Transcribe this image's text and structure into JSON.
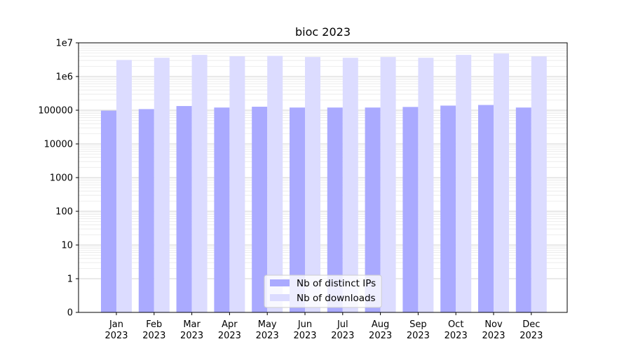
{
  "chart_data": {
    "type": "bar",
    "title": "bioc 2023",
    "xlabel": "",
    "ylabel": "",
    "yscale": "symlog",
    "ylim": [
      0,
      10000000
    ],
    "y_tick_values": [
      0,
      1,
      10,
      100,
      1000,
      10000,
      100000,
      1000000,
      10000000
    ],
    "y_tick_labels": [
      "0",
      "1",
      "10",
      "100",
      "1000",
      "10000",
      "100000",
      "1e6",
      "1e7"
    ],
    "categories": [
      "Jan\n2023",
      "Feb\n2023",
      "Mar\n2023",
      "Apr\n2023",
      "May\n2023",
      "Jun\n2023",
      "Jul\n2023",
      "Aug\n2023",
      "Sep\n2023",
      "Oct\n2023",
      "Nov\n2023",
      "Dec\n2023"
    ],
    "series": [
      {
        "name": "Nb of distinct IPs",
        "color": "#aaaaff",
        "values": [
          97000,
          108000,
          133000,
          120000,
          127000,
          120000,
          120000,
          120000,
          125000,
          137000,
          143000,
          120000
        ]
      },
      {
        "name": "Nb of downloads",
        "color": "#dcdcff",
        "values": [
          3100000,
          3600000,
          4400000,
          4000000,
          4100000,
          3800000,
          3600000,
          3800000,
          3600000,
          4400000,
          4800000,
          3950000
        ]
      }
    ],
    "grid": true,
    "legend_position": "lower center"
  }
}
